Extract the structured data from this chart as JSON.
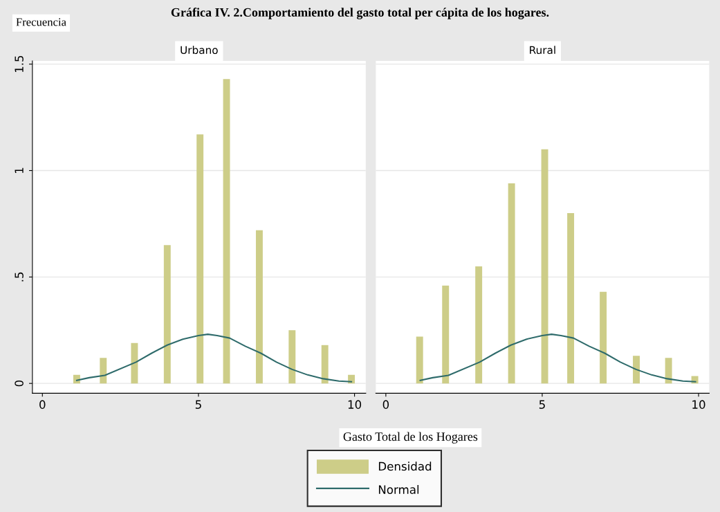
{
  "chart_data": [
    {
      "type": "bar",
      "title": "Gráfica IV. 2.Comportamiento del gasto total per cápita de los hogares.",
      "subtitle": "Urbano",
      "ylabel": "Frecuencia",
      "xlabel": "Gasto Total de los Hogares",
      "series": [
        {
          "name": "Densidad",
          "color": "#cdcd88",
          "x": [
            1.1,
            1.95,
            2.95,
            4,
            5.05,
            5.9,
            6.95,
            8,
            9.05,
            9.9
          ],
          "values": [
            0.04,
            0.12,
            0.19,
            0.65,
            1.17,
            1.43,
            0.72,
            0.25,
            0.18,
            0.04
          ]
        },
        {
          "name": "Normal",
          "type": "line",
          "color": "#2e6b6b",
          "x": [
            1.1,
            1.5,
            2,
            3,
            3.5,
            4,
            4.5,
            5,
            5.3,
            5.6,
            6,
            6.5,
            7,
            7.5,
            8,
            8.5,
            9,
            9.5,
            9.9
          ],
          "values": [
            0.014,
            0.027,
            0.038,
            0.1,
            0.142,
            0.18,
            0.208,
            0.225,
            0.231,
            0.225,
            0.213,
            0.175,
            0.142,
            0.1,
            0.066,
            0.04,
            0.022,
            0.011,
            0.008
          ]
        }
      ],
      "xlim": [
        -0.32,
        10.36
      ],
      "xticks": [
        0,
        5,
        10
      ],
      "ylim": [
        -0.046,
        1.515
      ],
      "yticks": [
        0,
        {
          "value": 0.5,
          "label": ".5"
        },
        1,
        1.5
      ],
      "grid": "y",
      "legend": "bottom"
    },
    {
      "type": "bar",
      "subtitle": "Rural",
      "series": [
        {
          "color": "#cdcd88",
          "x": [
            1.08,
            1.91,
            2.97,
            4.02,
            5.08,
            5.91,
            6.95,
            8.01,
            9.04,
            9.88
          ],
          "values": [
            0.22,
            0.46,
            0.55,
            0.94,
            1.1,
            0.8,
            0.43,
            0.13,
            0.12,
            0.035
          ]
        },
        {
          "type": "line",
          "color": "#2e6b6b",
          "x": [
            1.1,
            1.5,
            2,
            3,
            3.5,
            4,
            4.5,
            5,
            5.3,
            5.6,
            6,
            6.5,
            7,
            7.5,
            8,
            8.5,
            9,
            9.5,
            9.9
          ],
          "values": [
            0.014,
            0.027,
            0.038,
            0.1,
            0.142,
            0.18,
            0.208,
            0.225,
            0.231,
            0.225,
            0.213,
            0.175,
            0.142,
            0.1,
            0.066,
            0.04,
            0.022,
            0.011,
            0.008
          ]
        }
      ],
      "xlim": [
        -0.32,
        10.34
      ],
      "xticks": [
        0,
        5,
        10
      ],
      "ylim": [
        -0.046,
        1.515
      ],
      "yticks": [
        0,
        0.5,
        1,
        1.5
      ],
      "grid": "y",
      "tick_labels": "x"
    }
  ]
}
